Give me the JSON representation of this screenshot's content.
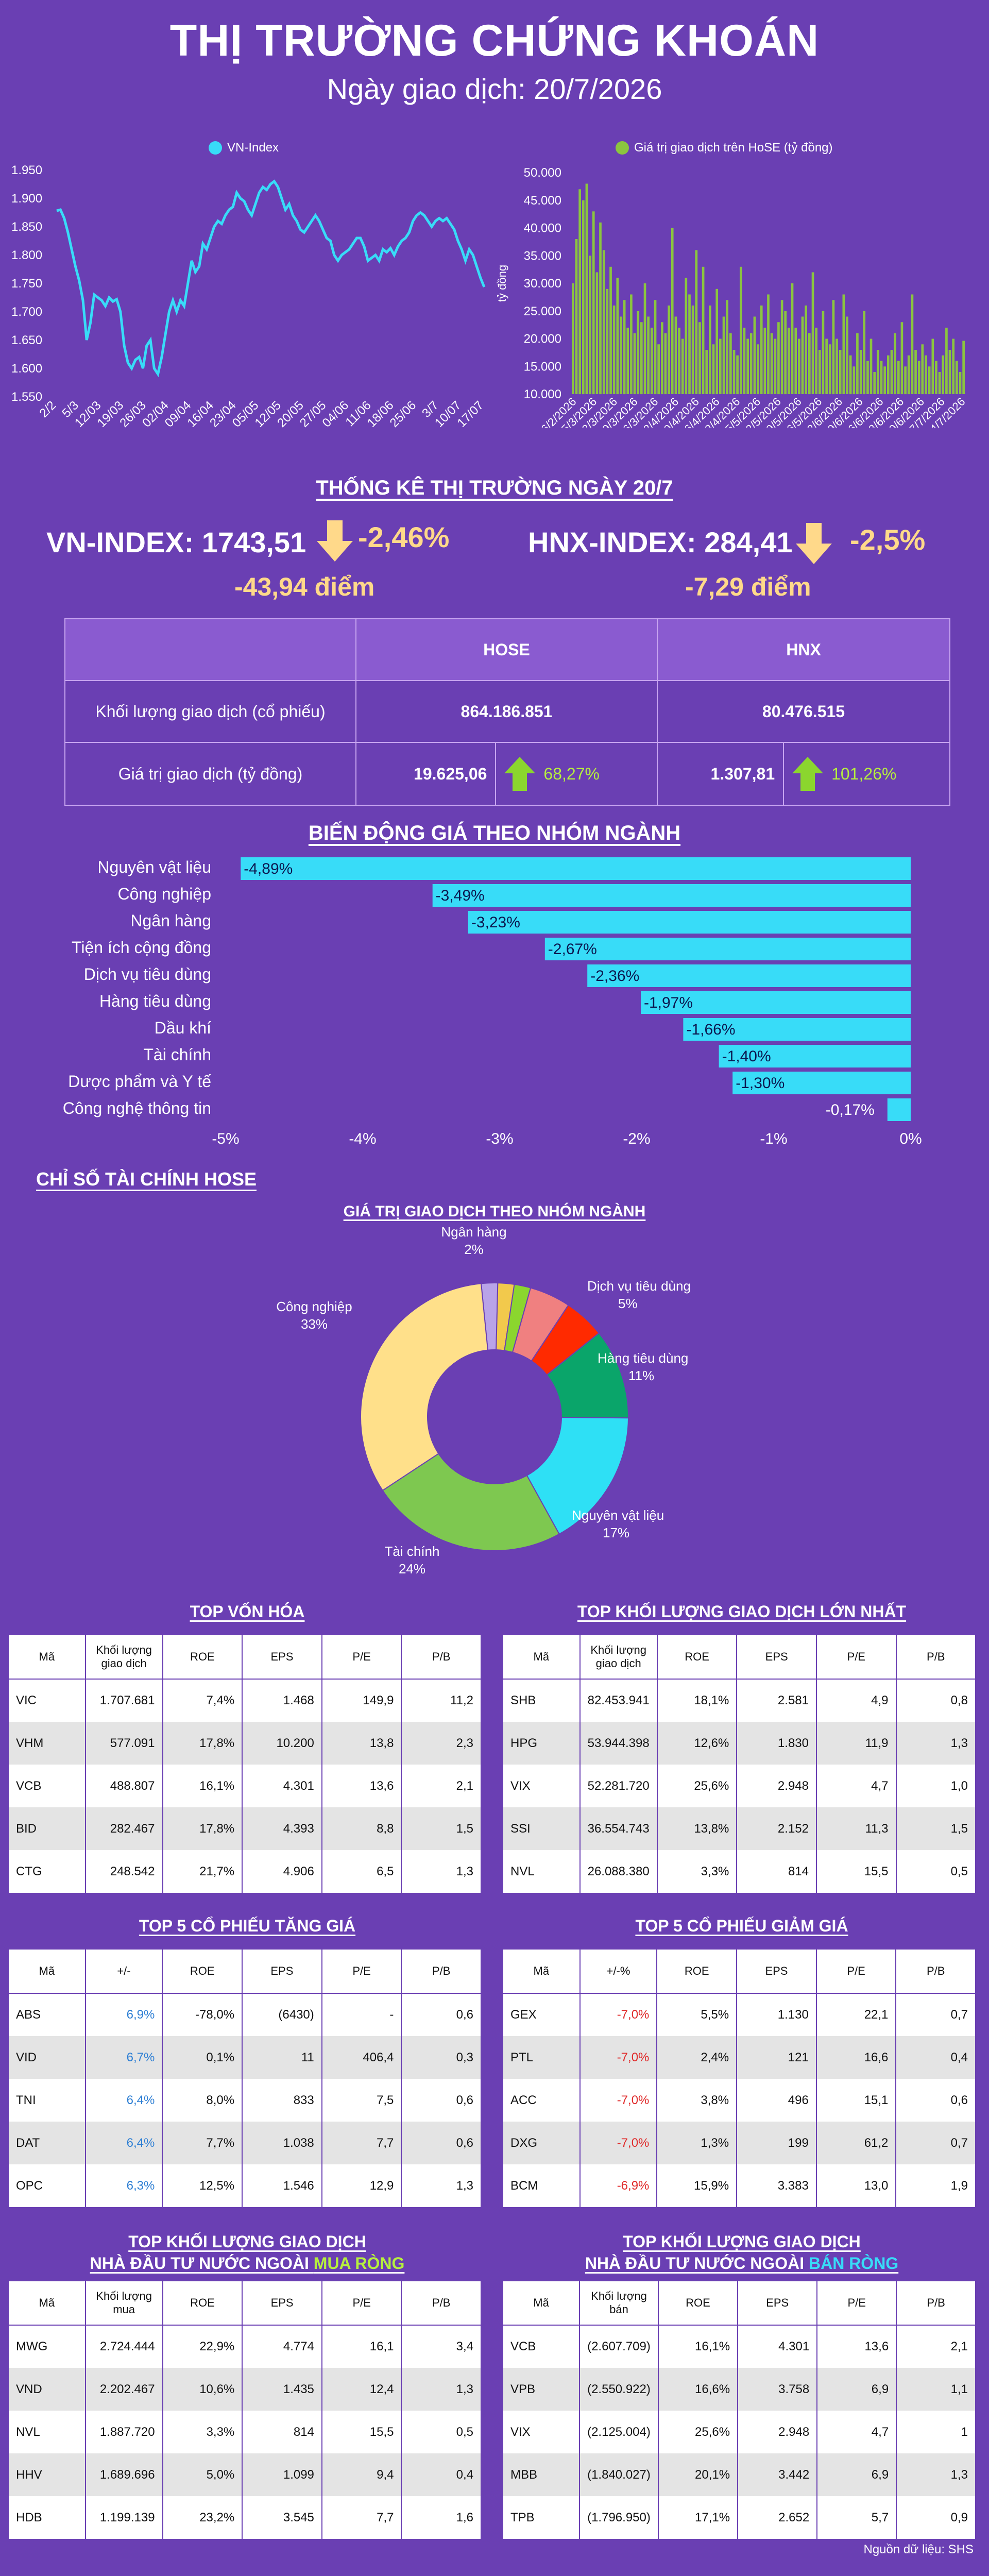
{
  "header": {
    "title": "THỊ TRƯỜNG CHỨNG KHOÁN",
    "subtitle": "Ngày giao dịch: 20/7/2026"
  },
  "colors": {
    "background": "#6a3fb3",
    "vnindex_line": "#38dcf8",
    "hose_bars": "#8bc53f",
    "sector_bars": "#38dcf8",
    "down_arrow": "#ffd98a",
    "up_arrow": "#8bd62e"
  },
  "chart_data": [
    {
      "type": "line",
      "legend": "VN-Index",
      "x_ticks": [
        "2/2",
        "5/3",
        "12/03",
        "19/03",
        "26/03",
        "02/04",
        "09/04",
        "16/04",
        "23/04",
        "05/05",
        "12/05",
        "20/05",
        "27/05",
        "04/06",
        "11/06",
        "18/06",
        "25/06",
        "3/7",
        "10/07",
        "17/07"
      ],
      "y_ticks": [
        "1.950",
        "1.900",
        "1.850",
        "1.800",
        "1.750",
        "1.700",
        "1.650",
        "1.600",
        "1.550"
      ],
      "ylim": [
        1550,
        1950
      ],
      "values": [
        1878,
        1880,
        1865,
        1840,
        1810,
        1780,
        1755,
        1720,
        1650,
        1680,
        1730,
        1725,
        1720,
        1710,
        1725,
        1718,
        1722,
        1700,
        1640,
        1610,
        1600,
        1615,
        1620,
        1600,
        1640,
        1650,
        1600,
        1590,
        1620,
        1660,
        1700,
        1720,
        1700,
        1720,
        1710,
        1750,
        1790,
        1770,
        1780,
        1820,
        1810,
        1830,
        1850,
        1860,
        1855,
        1870,
        1880,
        1885,
        1910,
        1900,
        1895,
        1880,
        1870,
        1890,
        1910,
        1920,
        1915,
        1925,
        1930,
        1920,
        1900,
        1880,
        1890,
        1870,
        1860,
        1845,
        1840,
        1850,
        1860,
        1870,
        1860,
        1845,
        1830,
        1825,
        1800,
        1790,
        1800,
        1805,
        1810,
        1820,
        1830,
        1830,
        1815,
        1790,
        1795,
        1800,
        1790,
        1810,
        1805,
        1812,
        1800,
        1815,
        1825,
        1830,
        1840,
        1860,
        1870,
        1875,
        1870,
        1860,
        1850,
        1860,
        1865,
        1860,
        1865,
        1855,
        1845,
        1825,
        1810,
        1790,
        1810,
        1800,
        1780,
        1760,
        1743.51
      ]
    },
    {
      "type": "bar",
      "legend": "Giá trị giao dịch trên HoSE (tỷ đồng)",
      "ylabel": "tỷ đồng",
      "y_ticks": [
        "50.000",
        "45.000",
        "40.000",
        "35.000",
        "30.000",
        "25.000",
        "20.000",
        "15.000",
        "10.000"
      ],
      "ylim": [
        10000,
        50000
      ],
      "x_ticks": [
        "26/2/2026",
        "5/3/2026",
        "12/3/2026",
        "19/3/2026",
        "26/3/2026",
        "2/4/2026",
        "9/4/2026",
        "16/4/2026",
        "23/4/2026",
        "5/5/2026",
        "12/5/2026",
        "19/5/2026",
        "26/5/2026",
        "2/6/2026",
        "9/6/2026",
        "16/6/2026",
        "23/6/2026",
        "30/6/2026",
        "7/7/2026",
        "14/7/2026"
      ],
      "values": [
        30000,
        38000,
        47000,
        45000,
        48000,
        35000,
        43000,
        32000,
        41000,
        36000,
        29000,
        33000,
        26000,
        31000,
        24000,
        27000,
        22000,
        28000,
        21000,
        25000,
        23000,
        30000,
        24000,
        22000,
        27000,
        19000,
        23000,
        21000,
        26000,
        40000,
        24000,
        22000,
        20000,
        31000,
        28000,
        26000,
        36000,
        23000,
        33000,
        18000,
        26000,
        19000,
        29000,
        20000,
        24000,
        27000,
        21000,
        18000,
        17000,
        33000,
        22000,
        20000,
        21000,
        24000,
        19000,
        26000,
        22000,
        28000,
        21000,
        20000,
        23000,
        27000,
        25000,
        22000,
        30000,
        22000,
        20000,
        24000,
        26000,
        21000,
        32000,
        22000,
        18000,
        25000,
        20000,
        19000,
        27000,
        20000,
        18000,
        28000,
        24000,
        17000,
        15000,
        21000,
        18000,
        25000,
        16000,
        20000,
        14000,
        18000,
        16000,
        15000,
        17000,
        18000,
        21000,
        16000,
        23000,
        15000,
        17000,
        28000,
        18000,
        16000,
        19000,
        17000,
        15000,
        20000,
        16000,
        14000,
        17000,
        22000,
        18000,
        20000,
        16000,
        14000,
        19625.06
      ]
    },
    {
      "type": "bar",
      "title": "BIẾN ĐỘNG GIÁ THEO NHÓM NGÀNH",
      "categories": [
        "Nguyên vật liệu",
        "Công nghiệp",
        "Ngân hàng",
        "Tiện ích cộng đồng",
        "Dịch vụ tiêu dùng",
        "Hàng tiêu dùng",
        "Dầu khí",
        "Tài chính",
        "Dược phẩm và Y tế",
        "Công nghệ thông tin"
      ],
      "values": [
        -4.89,
        -3.49,
        -3.23,
        -2.67,
        -2.36,
        -1.97,
        -1.66,
        -1.4,
        -1.3,
        -0.17
      ],
      "labels": [
        "-4,89%",
        "-3,49%",
        "-3,23%",
        "-2,67%",
        "-2,36%",
        "-1,97%",
        "-1,66%",
        "-1,40%",
        "-1,30%",
        "-0,17%"
      ],
      "x_ticks": [
        "-5%",
        "-4%",
        "-3%",
        "-2%",
        "-1%",
        "0%"
      ],
      "xlim": [
        -5,
        0
      ]
    },
    {
      "type": "pie",
      "title": "GIÁ TRỊ GIAO DỊCH THEO NHÓM NGÀNH",
      "slices": [
        {
          "label": "Ngân hàng",
          "pct": "2%",
          "value": 2,
          "color": "#b9a3e8"
        },
        {
          "label": "",
          "pct": "",
          "value": 2,
          "color": "#f2c94c"
        },
        {
          "label": "",
          "pct": "",
          "value": 2,
          "color": "#8bd62e"
        },
        {
          "label": "Dịch vụ tiêu dùng",
          "pct": "5%",
          "value": 5,
          "color": "#f08080"
        },
        {
          "label": "",
          "pct": "",
          "value": 5,
          "color": "#ff2a00"
        },
        {
          "label": "Hàng tiêu dùng",
          "pct": "11%",
          "value": 11,
          "color": "#0aa56a"
        },
        {
          "label": "Nguyên vật liệu",
          "pct": "17%",
          "value": 17,
          "color": "#2ee0f5"
        },
        {
          "label": "Tài chính",
          "pct": "24%",
          "value": 24,
          "color": "#7ec850"
        },
        {
          "label": "Công nghiệp",
          "pct": "33%",
          "value": 33,
          "color": "#ffe08a"
        }
      ]
    }
  ],
  "stats": {
    "title": "THỐNG KÊ THỊ TRƯỜNG NGÀY 20/7",
    "vnindex_label": "VN-INDEX: 1743,51",
    "vnindex_pct": "-2,46%",
    "vnindex_pts": "-43,94 điểm",
    "hnx_label": "HNX-INDEX: 284,41",
    "hnx_pct": "-2,5%",
    "hnx_pts": "-7,29 điểm",
    "table": {
      "col_hose": "HOSE",
      "col_hnx": "HNX",
      "row1_label": "Khối lượng giao dịch (cổ phiếu)",
      "row1_hose": "864.186.851",
      "row1_hnx": "80.476.515",
      "row2_label": "Giá trị giao dịch (tỷ đồng)",
      "row2_hose": "19.625,06",
      "row2_hose_chg": "68,27%",
      "row2_hnx": "1.307,81",
      "row2_hnx_chg": "101,26%"
    }
  },
  "finance": {
    "title": "CHỈ SỐ TÀI CHÍNH HOSE"
  },
  "tables": {
    "top_cap": {
      "title": "TOP VỐN HÓA",
      "headers": [
        "Mã",
        "Khối lượng giao dịch",
        "ROE",
        "EPS",
        "P/E",
        "P/B"
      ],
      "rows": [
        [
          "VIC",
          "1.707.681",
          "7,4%",
          "1.468",
          "149,9",
          "11,2"
        ],
        [
          "VHM",
          "577.091",
          "17,8%",
          "10.200",
          "13,8",
          "2,3"
        ],
        [
          "VCB",
          "488.807",
          "16,1%",
          "4.301",
          "13,6",
          "2,1"
        ],
        [
          "BID",
          "282.467",
          "17,8%",
          "4.393",
          "8,8",
          "1,5"
        ],
        [
          "CTG",
          "248.542",
          "21,7%",
          "4.906",
          "6,5",
          "1,3"
        ]
      ]
    },
    "top_volume": {
      "title": "TOP KHỐI LƯỢNG GIAO DỊCH LỚN NHẤT",
      "headers": [
        "Mã",
        "Khối lượng giao dịch",
        "ROE",
        "EPS",
        "P/E",
        "P/B"
      ],
      "rows": [
        [
          "SHB",
          "82.453.941",
          "18,1%",
          "2.581",
          "4,9",
          "0,8"
        ],
        [
          "HPG",
          "53.944.398",
          "12,6%",
          "1.830",
          "11,9",
          "1,3"
        ],
        [
          "VIX",
          "52.281.720",
          "25,6%",
          "2.948",
          "4,7",
          "1,0"
        ],
        [
          "SSI",
          "36.554.743",
          "13,8%",
          "2.152",
          "11,3",
          "1,5"
        ],
        [
          "NVL",
          "26.088.380",
          "3,3%",
          "814",
          "15,5",
          "0,5"
        ]
      ]
    },
    "top_gain": {
      "title": "TOP 5 CỔ PHIẾU TĂNG GIÁ",
      "headers": [
        "Mã",
        "+/-",
        "ROE",
        "EPS",
        "P/E",
        "P/B"
      ],
      "rows": [
        [
          "ABS",
          "6,9%",
          "-78,0%",
          "(6430)",
          "-",
          "0,6"
        ],
        [
          "VID",
          "6,7%",
          "0,1%",
          "11",
          "406,4",
          "0,3"
        ],
        [
          "TNI",
          "6,4%",
          "8,0%",
          "833",
          "7,5",
          "0,6"
        ],
        [
          "DAT",
          "6,4%",
          "7,7%",
          "1.038",
          "7,7",
          "0,6"
        ],
        [
          "OPC",
          "6,3%",
          "12,5%",
          "1.546",
          "12,9",
          "1,3"
        ]
      ]
    },
    "top_loss": {
      "title": "TOP 5 CỔ PHIẾU GIẢM GIÁ",
      "headers": [
        "Mã",
        "+/-%",
        "ROE",
        "EPS",
        "P/E",
        "P/B"
      ],
      "rows": [
        [
          "GEX",
          "-7,0%",
          "5,5%",
          "1.130",
          "22,1",
          "0,7"
        ],
        [
          "PTL",
          "-7,0%",
          "2,4%",
          "121",
          "16,6",
          "0,4"
        ],
        [
          "ACC",
          "-7,0%",
          "3,8%",
          "496",
          "15,1",
          "0,6"
        ],
        [
          "DXG",
          "-7,0%",
          "1,3%",
          "199",
          "61,2",
          "0,7"
        ],
        [
          "BCM",
          "-6,9%",
          "15,9%",
          "3.383",
          "13,0",
          "1,9"
        ]
      ]
    },
    "foreign_buy": {
      "title_line1": "TOP KHỐI LƯỢNG GIAO DỊCH",
      "title_line2_a": "NHÀ ĐẦU TƯ NƯỚC NGOÀI ",
      "title_line2_b": "MUA RÒNG",
      "headers": [
        "Mã",
        "Khối lượng mua",
        "ROE",
        "EPS",
        "P/E",
        "P/B"
      ],
      "rows": [
        [
          "MWG",
          "2.724.444",
          "22,9%",
          "4.774",
          "16,1",
          "3,4"
        ],
        [
          "VND",
          "2.202.467",
          "10,6%",
          "1.435",
          "12,4",
          "1,3"
        ],
        [
          "NVL",
          "1.887.720",
          "3,3%",
          "814",
          "15,5",
          "0,5"
        ],
        [
          "HHV",
          "1.689.696",
          "5,0%",
          "1.099",
          "9,4",
          "0,4"
        ],
        [
          "HDB",
          "1.199.139",
          "23,2%",
          "3.545",
          "7,7",
          "1,6"
        ]
      ]
    },
    "foreign_sell": {
      "title_line1": "TOP KHỐI LƯỢNG GIAO DỊCH",
      "title_line2_a": "NHÀ ĐẦU TƯ NƯỚC NGOÀI ",
      "title_line2_b": "BÁN RÒNG",
      "headers": [
        "Mã",
        "Khối lượng bán",
        "ROE",
        "EPS",
        "P/E",
        "P/B"
      ],
      "rows": [
        [
          "VCB",
          "(2.607.709)",
          "16,1%",
          "4.301",
          "13,6",
          "2,1"
        ],
        [
          "VPB",
          "(2.550.922)",
          "16,6%",
          "3.758",
          "6,9",
          "1,1"
        ],
        [
          "VIX",
          "(2.125.004)",
          "25,6%",
          "2.948",
          "4,7",
          "1"
        ],
        [
          "MBB",
          "(1.840.027)",
          "20,1%",
          "3.442",
          "6,9",
          "1,3"
        ],
        [
          "TPB",
          "(1.796.950)",
          "17,1%",
          "2.652",
          "5,7",
          "0,9"
        ]
      ]
    }
  },
  "footer": {
    "source": "Nguồn dữ liệu: SHS"
  }
}
